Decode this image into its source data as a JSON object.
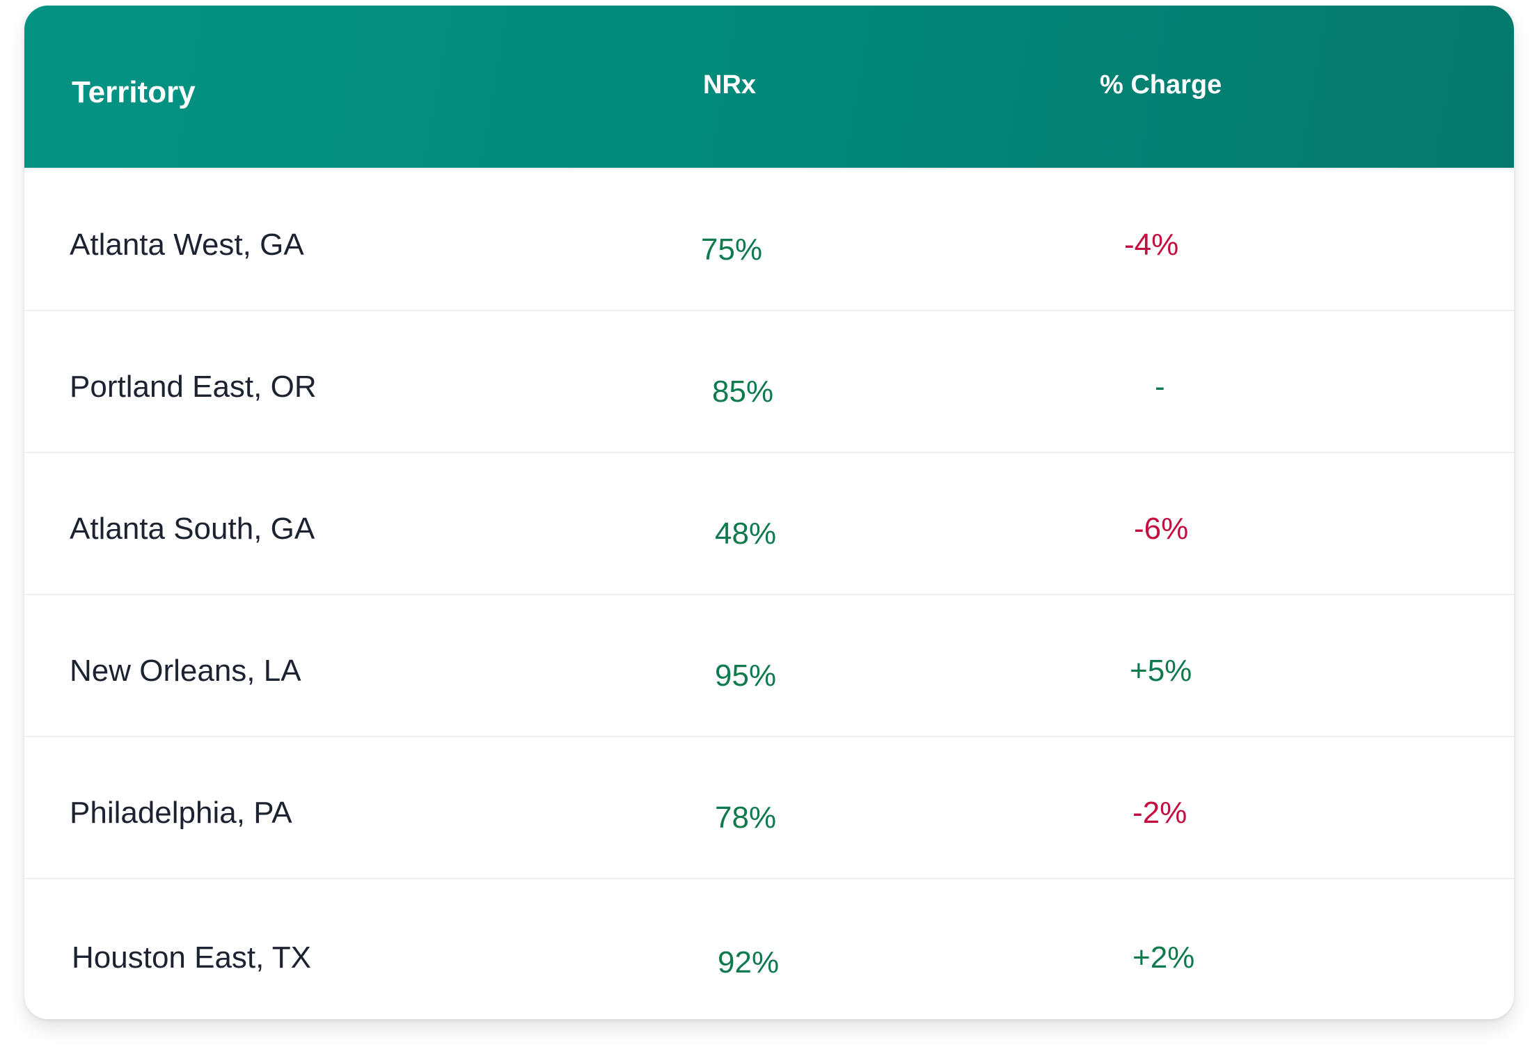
{
  "table": {
    "headers": {
      "territory": "Territory",
      "nrx": "NRx",
      "change": "% Charge"
    },
    "rows": [
      {
        "territory": "Atlanta West, GA",
        "nrx": "75%",
        "change": "-4%",
        "change_trend": "negative"
      },
      {
        "territory": "Portland East, OR",
        "nrx": "85%",
        "change": "-",
        "change_trend": "positive"
      },
      {
        "territory": "Atlanta South, GA",
        "nrx": "48%",
        "change": "-6%",
        "change_trend": "negative"
      },
      {
        "territory": "New Orleans, LA",
        "nrx": "95%",
        "change": "+5%",
        "change_trend": "positive"
      },
      {
        "territory": "Philadelphia, PA",
        "nrx": "78%",
        "change": "-2%",
        "change_trend": "negative"
      },
      {
        "territory": "Houston East, TX",
        "nrx": "92%",
        "change": "+2%",
        "change_trend": "positive"
      }
    ]
  },
  "colors": {
    "header_start": "#049383",
    "header_end": "#04796c",
    "positive": "#0e7a4e",
    "negative": "#c20f3f",
    "text": "#1d2230"
  }
}
